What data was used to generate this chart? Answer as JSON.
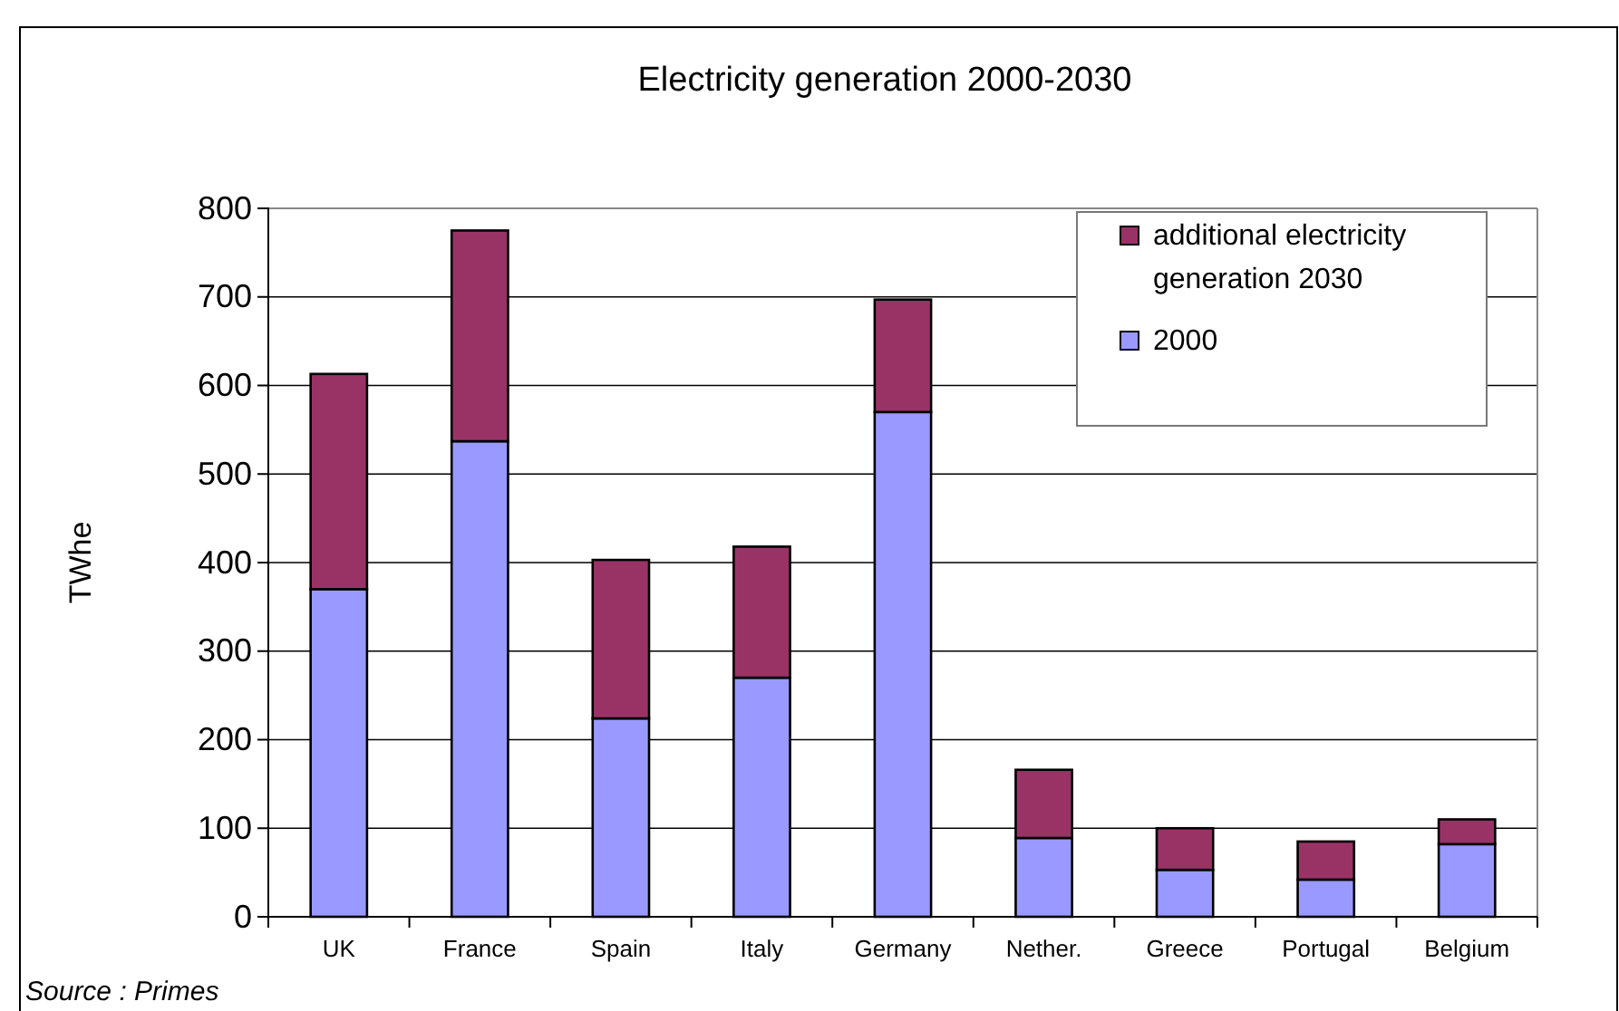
{
  "chart_data": {
    "type": "bar",
    "title": "Electricity generation 2000-2030",
    "ylabel": "TWhe",
    "categories": [
      "UK",
      "France",
      "Spain",
      "Italy",
      "Germany",
      "Nether.",
      "Greece",
      "Portugal",
      "Belgium"
    ],
    "series": [
      {
        "name": "2000",
        "color": "#9999ff",
        "values": [
          370,
          537,
          224,
          270,
          570,
          89,
          53,
          42,
          82
        ]
      },
      {
        "name": "additional electricity generation 2030",
        "color": "#993366",
        "values": [
          243,
          238,
          179,
          148,
          127,
          77,
          47,
          43,
          28
        ]
      }
    ],
    "stacked": true,
    "ylim": [
      0,
      800
    ],
    "yticks": [
      0,
      100,
      200,
      300,
      400,
      500,
      600,
      700,
      800
    ],
    "grid": "y",
    "legend": "top right",
    "annotations": [
      "Source : Primes"
    ]
  }
}
